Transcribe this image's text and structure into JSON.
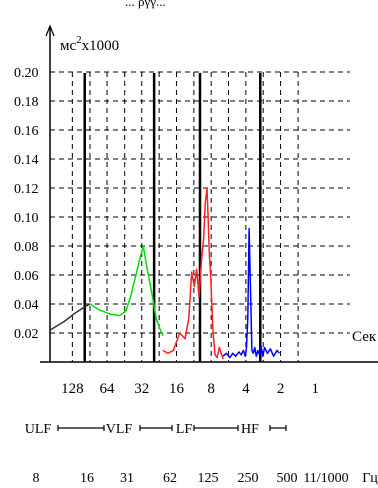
{
  "chart_data": {
    "type": "line",
    "title_fragment": "... ργγ...",
    "ylabel": {
      "base": "мс",
      "sup": "2",
      "suffix": "x1000"
    },
    "xlabel_right": "Сек",
    "ylim": [
      0,
      0.2
    ],
    "yticks": [
      "0.20",
      "0.18",
      "0.16",
      "0.14",
      "0.12",
      "0.10",
      "0.08",
      "0.06",
      "0.04",
      "0.02"
    ],
    "xticks_period": [
      "128",
      "64",
      "32",
      "16",
      "8",
      "4",
      "2",
      "1"
    ],
    "band_row": {
      "labels": [
        "ULF",
        "VLF",
        "LF",
        "HF"
      ]
    },
    "xticks_freq": [
      "8",
      "16",
      "31",
      "62",
      "125",
      "250",
      "500",
      "11/1000",
      "Гц"
    ],
    "grid": true,
    "band_boundaries_sec": [
      100,
      25,
      10,
      3
    ],
    "series": [
      {
        "name": "ULF",
        "color": "#333333",
        "x": [
          200,
          150,
          120,
          100,
          90
        ],
        "y": [
          0.022,
          0.028,
          0.034,
          0.038,
          0.04
        ]
      },
      {
        "name": "VLF",
        "color": "#00e000",
        "x": [
          90,
          75,
          60,
          50,
          44,
          40,
          36,
          33,
          31,
          29,
          26,
          24,
          22,
          21
        ],
        "y": [
          0.04,
          0.036,
          0.033,
          0.032,
          0.035,
          0.045,
          0.06,
          0.072,
          0.08,
          0.066,
          0.046,
          0.03,
          0.022,
          0.018
        ]
      },
      {
        "name": "LF",
        "color": "#ff2020",
        "x": [
          21,
          19,
          17,
          15,
          13.5,
          12.5,
          11.8,
          11.2,
          10.7,
          10.2,
          9.7,
          9.3,
          9.0,
          8.7,
          8.5,
          8.3,
          8.1,
          7.9,
          7.7,
          7.4,
          7.1,
          6.8,
          6.3
        ],
        "y": [
          0.008,
          0.006,
          0.008,
          0.02,
          0.016,
          0.03,
          0.062,
          0.052,
          0.064,
          0.045,
          0.07,
          0.085,
          0.11,
          0.12,
          0.1,
          0.075,
          0.06,
          0.04,
          0.02,
          0.005,
          0.003,
          0.01,
          0.002
        ]
      },
      {
        "name": "HF",
        "color": "#0000ff",
        "x": [
          6.3,
          5.9,
          5.5,
          5.2,
          4.9,
          4.6,
          4.4,
          4.2,
          4.05,
          3.95,
          3.85,
          3.75,
          3.65,
          3.55,
          3.45,
          3.35,
          3.25,
          3.15,
          3.05,
          2.95,
          2.85,
          2.75,
          2.6,
          2.45,
          2.3,
          2.15,
          2.05
        ],
        "y": [
          0.004,
          0.006,
          0.003,
          0.006,
          0.004,
          0.007,
          0.005,
          0.008,
          0.004,
          0.01,
          0.03,
          0.092,
          0.05,
          0.008,
          0.006,
          0.01,
          0.004,
          0.008,
          0.005,
          0.011,
          0.004,
          0.01,
          0.006,
          0.009,
          0.004,
          0.008,
          0.006
        ]
      }
    ]
  }
}
